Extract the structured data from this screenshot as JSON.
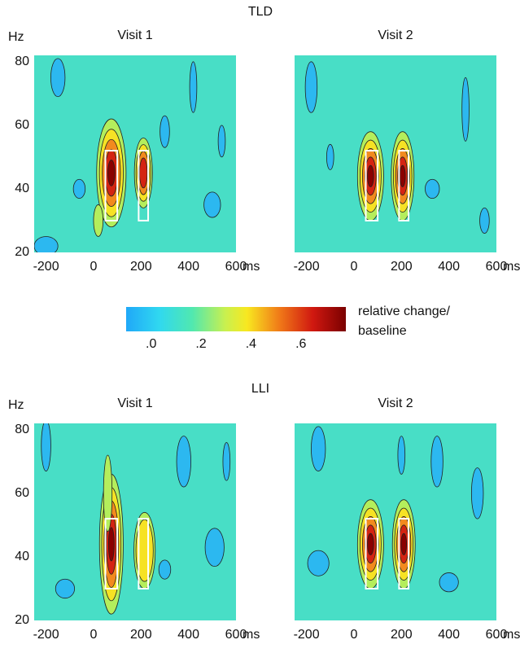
{
  "chart_data": [
    {
      "type": "contour",
      "group": "TLD",
      "title": "Visit 1",
      "y_label": "Hz",
      "x_unit": "ms",
      "xlim": [
        -250,
        600
      ],
      "ylim": [
        20,
        82
      ],
      "xticks": [
        -200,
        0,
        200,
        400,
        600
      ],
      "yticks": [
        20,
        40,
        60,
        80
      ]
    },
    {
      "type": "contour",
      "title": "Visit 2",
      "x_unit": "ms",
      "xlim": [
        -250,
        600
      ],
      "ylim": [
        20,
        82
      ],
      "xticks": [
        -200,
        0,
        200,
        400,
        600
      ]
    },
    {
      "type": "contour",
      "group": "LLI",
      "title": "Visit 1",
      "y_label": "Hz",
      "x_unit": "ms",
      "xlim": [
        -250,
        600
      ],
      "ylim": [
        20,
        82
      ],
      "xticks": [
        -200,
        0,
        200,
        400,
        600
      ],
      "yticks": [
        20,
        40,
        60,
        80
      ]
    },
    {
      "type": "contour",
      "title": "Visit 2",
      "x_unit": "ms",
      "xlim": [
        -250,
        600
      ],
      "ylim": [
        20,
        82
      ],
      "xticks": [
        -200,
        0,
        200,
        400,
        600
      ]
    }
  ],
  "colorbar": {
    "label": [
      "relative change/",
      "baseline"
    ],
    "clim": [
      -0.1,
      0.78
    ],
    "ticks": [
      {
        "value": 0,
        "label": ".0"
      },
      {
        "value": 0.2,
        "label": ".2"
      },
      {
        "value": 0.4,
        "label": ".4"
      },
      {
        "value": 0.6,
        "label": ".6"
      }
    ]
  }
}
